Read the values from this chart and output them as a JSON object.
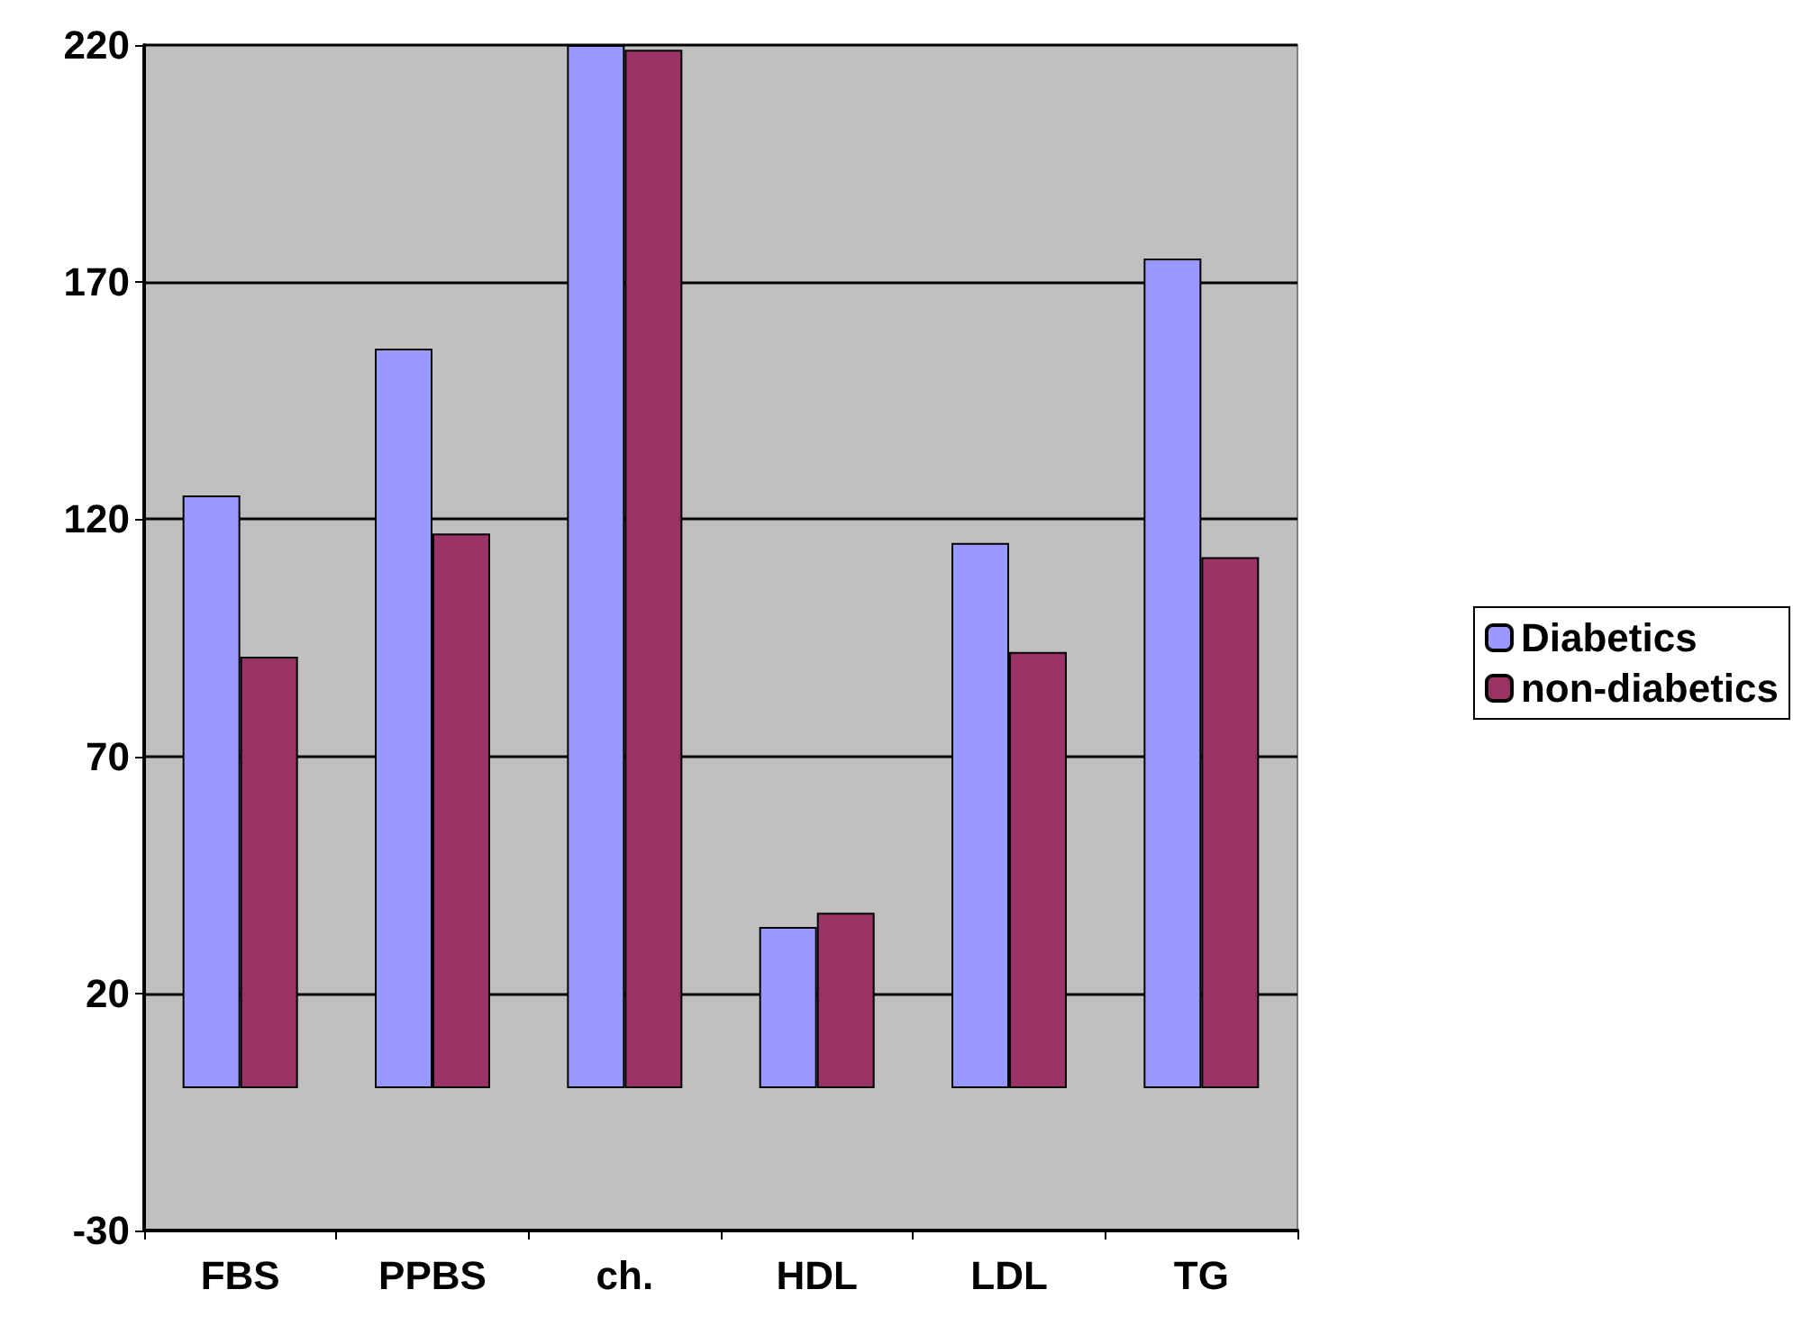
{
  "chart_data": {
    "type": "bar",
    "categories": [
      "FBS",
      "PPBS",
      "ch.",
      "HDL",
      "LDL",
      "TG"
    ],
    "series": [
      {
        "name": "Diabetics",
        "color": "#9999ff",
        "values": [
          125,
          156,
          220,
          34,
          115,
          175
        ]
      },
      {
        "name": "non-diabetics",
        "color": "#993366",
        "values": [
          91,
          117,
          219,
          37,
          92,
          112
        ]
      }
    ],
    "ylim": [
      -30,
      220
    ],
    "yticks": [
      -30,
      20,
      70,
      120,
      170,
      220
    ],
    "grid": "y",
    "legend": "right"
  }
}
